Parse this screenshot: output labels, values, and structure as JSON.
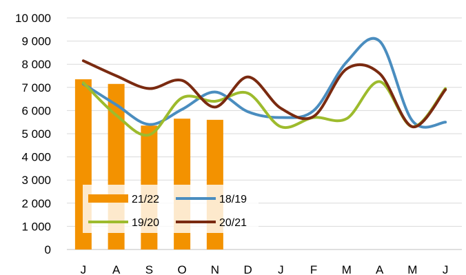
{
  "chart_data": {
    "type": "bar+line",
    "categories": [
      "J",
      "A",
      "S",
      "O",
      "N",
      "D",
      "J",
      "F",
      "M",
      "A",
      "M",
      "J"
    ],
    "ylim": [
      0,
      10000
    ],
    "yticks": [
      0,
      1000,
      2000,
      3000,
      4000,
      5000,
      6000,
      7000,
      8000,
      9000,
      10000
    ],
    "ytick_labels": [
      "0",
      "1 000",
      "2 000",
      "3 000",
      "4 000",
      "5 000",
      "6 000",
      "7 000",
      "8 000",
      "9 000",
      "10 000"
    ],
    "grid": "horizontal",
    "legend_position": "bottom-left",
    "bar_series": {
      "name": "21/22",
      "color": "#F39200",
      "values": [
        7350,
        7150,
        5350,
        5650,
        5600,
        null,
        null,
        null,
        null,
        null,
        null,
        null
      ]
    },
    "line_series": [
      {
        "name": "18/19",
        "color": "#4A8DBF",
        "values": [
          7150,
          6250,
          5400,
          6050,
          6800,
          5950,
          5700,
          6000,
          8100,
          9000,
          5550,
          5500
        ]
      },
      {
        "name": "19/20",
        "color": "#9DBB2D",
        "values": [
          7200,
          5800,
          4950,
          6550,
          6400,
          6750,
          5300,
          5700,
          5650,
          7250,
          5300,
          6950
        ]
      },
      {
        "name": "20/21",
        "color": "#7A2A10",
        "values": [
          8150,
          7500,
          6950,
          7300,
          6150,
          7450,
          6100,
          5750,
          7800,
          7600,
          5300,
          6900
        ]
      }
    ],
    "legend_entries": [
      "21/22",
      "18/19",
      "19/20",
      "20/21"
    ]
  }
}
